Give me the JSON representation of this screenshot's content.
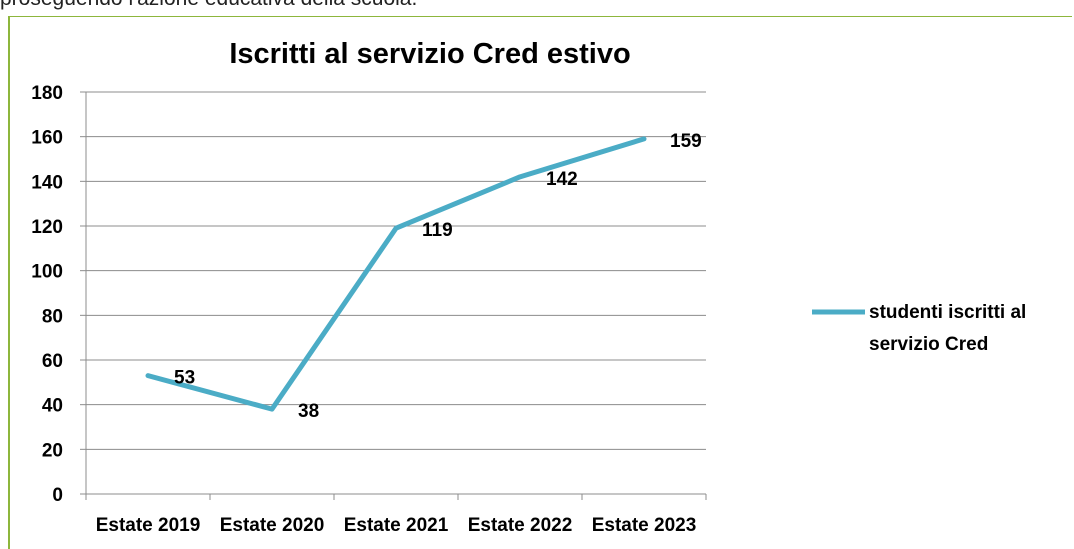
{
  "document": {
    "text_above": "proseguendo l'azione educativa della scuola."
  },
  "chart_data": {
    "type": "line",
    "title": "Iscritti al servizio Cred estivo",
    "categories": [
      "Estate 2019",
      "Estate 2020",
      "Estate 2021",
      "Estate 2022",
      "Estate 2023"
    ],
    "series": [
      {
        "name": "studenti iscritti al servizio Cred",
        "values": [
          53,
          38,
          119,
          142,
          159
        ],
        "color": "#4bacc6"
      }
    ],
    "ylim": [
      0,
      180
    ],
    "yticks": [
      0,
      20,
      40,
      60,
      80,
      100,
      120,
      140,
      160,
      180
    ],
    "grid": true,
    "legend": "right",
    "data_labels": [
      "53",
      "38",
      "119",
      "142",
      "159"
    ],
    "legend_lines": [
      "studenti iscritti al",
      "servizio Cred"
    ]
  }
}
